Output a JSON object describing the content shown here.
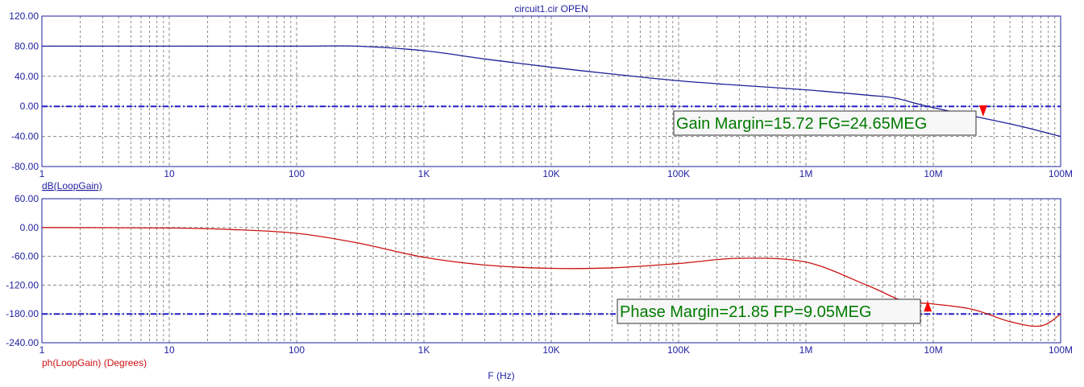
{
  "window": {
    "title": "circuit1.cir OPEN"
  },
  "colors": {
    "axis": "#1f1fa0",
    "grid": "#8a8a8a",
    "gain": "#1f1f99",
    "phase": "#cc1111",
    "ref": "#1f1fcc",
    "annotation": "#007a00",
    "marker": "#ff0000"
  },
  "chart_data": [
    {
      "type": "line",
      "title": "circuit1.cir OPEN",
      "ylabel": "dB(LoopGain)",
      "xscale": "log",
      "xlim": [
        1,
        100000000
      ],
      "ylim": [
        -80,
        120
      ],
      "yticks": [
        120,
        80,
        40,
        0,
        -40,
        -80
      ],
      "ytick_labels": [
        "120.00",
        "80.00",
        "40.00",
        "0.00",
        "-40.00",
        "-80.00"
      ],
      "xticks": [
        1,
        10,
        100,
        1000,
        10000,
        100000,
        1000000,
        10000000,
        100000000
      ],
      "xtick_labels": [
        "1",
        "10",
        "100",
        "1K",
        "10K",
        "100K",
        "1M",
        "10M",
        "100M"
      ],
      "grid": true,
      "reference_line": 0,
      "series": [
        {
          "name": "dB(LoopGain)",
          "x": [
            1,
            10,
            100,
            300,
            1000,
            3000,
            10000,
            30000,
            100000,
            300000,
            1000000,
            3000000,
            5000000,
            9050000,
            24650000,
            50000000,
            100000000
          ],
          "y": [
            80,
            80,
            80,
            80,
            74,
            63,
            52,
            43,
            34,
            28,
            22,
            15,
            11,
            0,
            -15.72,
            -27,
            -40
          ]
        }
      ],
      "annotation": {
        "text": "Gain Margin=15.72 FG=24.65MEG",
        "x": 24650000,
        "y": -15.72
      }
    },
    {
      "type": "line",
      "ylabel": "ph(LoopGain) (Degrees)",
      "xlabel": "F (Hz)",
      "xscale": "log",
      "xlim": [
        1,
        100000000
      ],
      "ylim": [
        -240,
        60
      ],
      "yticks": [
        60,
        0,
        -60,
        -120,
        -180,
        -240
      ],
      "ytick_labels": [
        "60.00",
        "0.00",
        "-60.00",
        "-120.00",
        "-180.00",
        "-240.00"
      ],
      "xticks": [
        1,
        10,
        100,
        1000,
        10000,
        100000,
        1000000,
        10000000,
        100000000
      ],
      "xtick_labels": [
        "1",
        "10",
        "100",
        "1K",
        "10K",
        "100K",
        "1M",
        "10M",
        "100M"
      ],
      "grid": true,
      "reference_line": -180,
      "series": [
        {
          "name": "ph(LoopGain)",
          "x": [
            1,
            10,
            30,
            100,
            300,
            1000,
            3000,
            10000,
            30000,
            100000,
            300000,
            1000000,
            3000000,
            6000000,
            9050000,
            20000000,
            40000000,
            70000000,
            100000000
          ],
          "y": [
            0,
            -1,
            -4,
            -12,
            -32,
            -62,
            -78,
            -85,
            -84,
            -75,
            -64,
            -72,
            -120,
            -155,
            -158.15,
            -170,
            -196,
            -205,
            -180
          ]
        }
      ],
      "annotation": {
        "text": "Phase Margin=21.85 FP=9.05MEG",
        "x": 9050000,
        "y": -158.15
      }
    }
  ]
}
